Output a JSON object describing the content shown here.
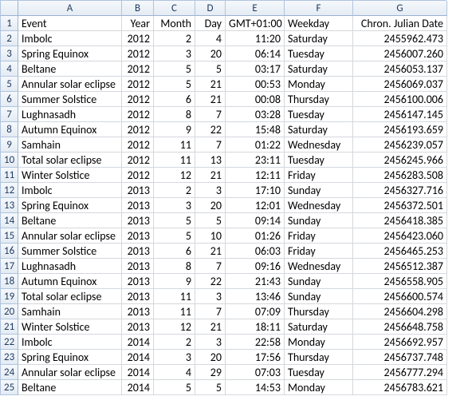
{
  "columns": [
    "A",
    "B",
    "C",
    "D",
    "E",
    "F",
    "G"
  ],
  "headers": {
    "A": "Event",
    "B": "Year",
    "C": "Month",
    "D": "Day",
    "E": "GMT+01:00",
    "F": "Weekday",
    "G": "Chron. Julian Date"
  },
  "align": {
    "A": "left",
    "B": "right",
    "C": "right",
    "D": "right",
    "E": "right",
    "F": "left",
    "G": "right"
  },
  "rows": [
    {
      "n": 1
    },
    {
      "n": 2,
      "A": "Imbolc",
      "B": "2012",
      "C": "2",
      "D": "4",
      "E": "11:20",
      "F": "Saturday",
      "G": "2455962.473"
    },
    {
      "n": 3,
      "A": "Spring Equinox",
      "B": "2012",
      "C": "3",
      "D": "20",
      "E": "06:14",
      "F": "Tuesday",
      "G": "2456007.260"
    },
    {
      "n": 4,
      "A": "Beltane",
      "B": "2012",
      "C": "5",
      "D": "5",
      "E": "03:17",
      "F": "Saturday",
      "G": "2456053.137"
    },
    {
      "n": 5,
      "A": "Annular solar eclipse",
      "B": "2012",
      "C": "5",
      "D": "21",
      "E": "00:53",
      "F": "Monday",
      "G": "2456069.037"
    },
    {
      "n": 6,
      "A": "Summer Solstice",
      "B": "2012",
      "C": "6",
      "D": "21",
      "E": "00:08",
      "F": "Thursday",
      "G": "2456100.006"
    },
    {
      "n": 7,
      "A": "Lughnasadh",
      "B": "2012",
      "C": "8",
      "D": "7",
      "E": "03:28",
      "F": "Tuesday",
      "G": "2456147.145"
    },
    {
      "n": 8,
      "A": "Autumn Equinox",
      "B": "2012",
      "C": "9",
      "D": "22",
      "E": "15:48",
      "F": "Saturday",
      "G": "2456193.659"
    },
    {
      "n": 9,
      "A": "Samhain",
      "B": "2012",
      "C": "11",
      "D": "7",
      "E": "01:22",
      "F": "Wednesday",
      "G": "2456239.057"
    },
    {
      "n": 10,
      "A": "Total solar eclipse",
      "B": "2012",
      "C": "11",
      "D": "13",
      "E": "23:11",
      "F": "Tuesday",
      "G": "2456245.966"
    },
    {
      "n": 11,
      "A": "Winter Solstice",
      "B": "2012",
      "C": "12",
      "D": "21",
      "E": "12:11",
      "F": "Friday",
      "G": "2456283.508"
    },
    {
      "n": 12,
      "A": "Imbolc",
      "B": "2013",
      "C": "2",
      "D": "3",
      "E": "17:10",
      "F": "Sunday",
      "G": "2456327.716"
    },
    {
      "n": 13,
      "A": "Spring Equinox",
      "B": "2013",
      "C": "3",
      "D": "20",
      "E": "12:01",
      "F": "Wednesday",
      "G": "2456372.501"
    },
    {
      "n": 14,
      "A": "Beltane",
      "B": "2013",
      "C": "5",
      "D": "5",
      "E": "09:14",
      "F": "Sunday",
      "G": "2456418.385"
    },
    {
      "n": 15,
      "A": "Annular solar eclipse",
      "B": "2013",
      "C": "5",
      "D": "10",
      "E": "01:26",
      "F": "Friday",
      "G": "2456423.060"
    },
    {
      "n": 16,
      "A": "Summer Solstice",
      "B": "2013",
      "C": "6",
      "D": "21",
      "E": "06:03",
      "F": "Friday",
      "G": "2456465.253"
    },
    {
      "n": 17,
      "A": "Lughnasadh",
      "B": "2013",
      "C": "8",
      "D": "7",
      "E": "09:16",
      "F": "Wednesday",
      "G": "2456512.387"
    },
    {
      "n": 18,
      "A": "Autumn Equinox",
      "B": "2013",
      "C": "9",
      "D": "22",
      "E": "21:43",
      "F": "Sunday",
      "G": "2456558.905"
    },
    {
      "n": 19,
      "A": "Total solar eclipse",
      "B": "2013",
      "C": "11",
      "D": "3",
      "E": "13:46",
      "F": "Sunday",
      "G": "2456600.574"
    },
    {
      "n": 20,
      "A": "Samhain",
      "B": "2013",
      "C": "11",
      "D": "7",
      "E": "07:09",
      "F": "Thursday",
      "G": "2456604.298"
    },
    {
      "n": 21,
      "A": "Winter Solstice",
      "B": "2013",
      "C": "12",
      "D": "21",
      "E": "18:11",
      "F": "Saturday",
      "G": "2456648.758"
    },
    {
      "n": 22,
      "A": "Imbolc",
      "B": "2014",
      "C": "2",
      "D": "3",
      "E": "22:58",
      "F": "Monday",
      "G": "2456692.957"
    },
    {
      "n": 23,
      "A": "Spring Equinox",
      "B": "2014",
      "C": "3",
      "D": "20",
      "E": "17:56",
      "F": "Thursday",
      "G": "2456737.748"
    },
    {
      "n": 24,
      "A": "Annular solar eclipse",
      "B": "2014",
      "C": "4",
      "D": "29",
      "E": "07:03",
      "F": "Tuesday",
      "G": "2456777.294"
    },
    {
      "n": 25,
      "A": "Beltane",
      "B": "2014",
      "C": "5",
      "D": "5",
      "E": "14:53",
      "F": "Monday",
      "G": "2456783.621"
    }
  ]
}
